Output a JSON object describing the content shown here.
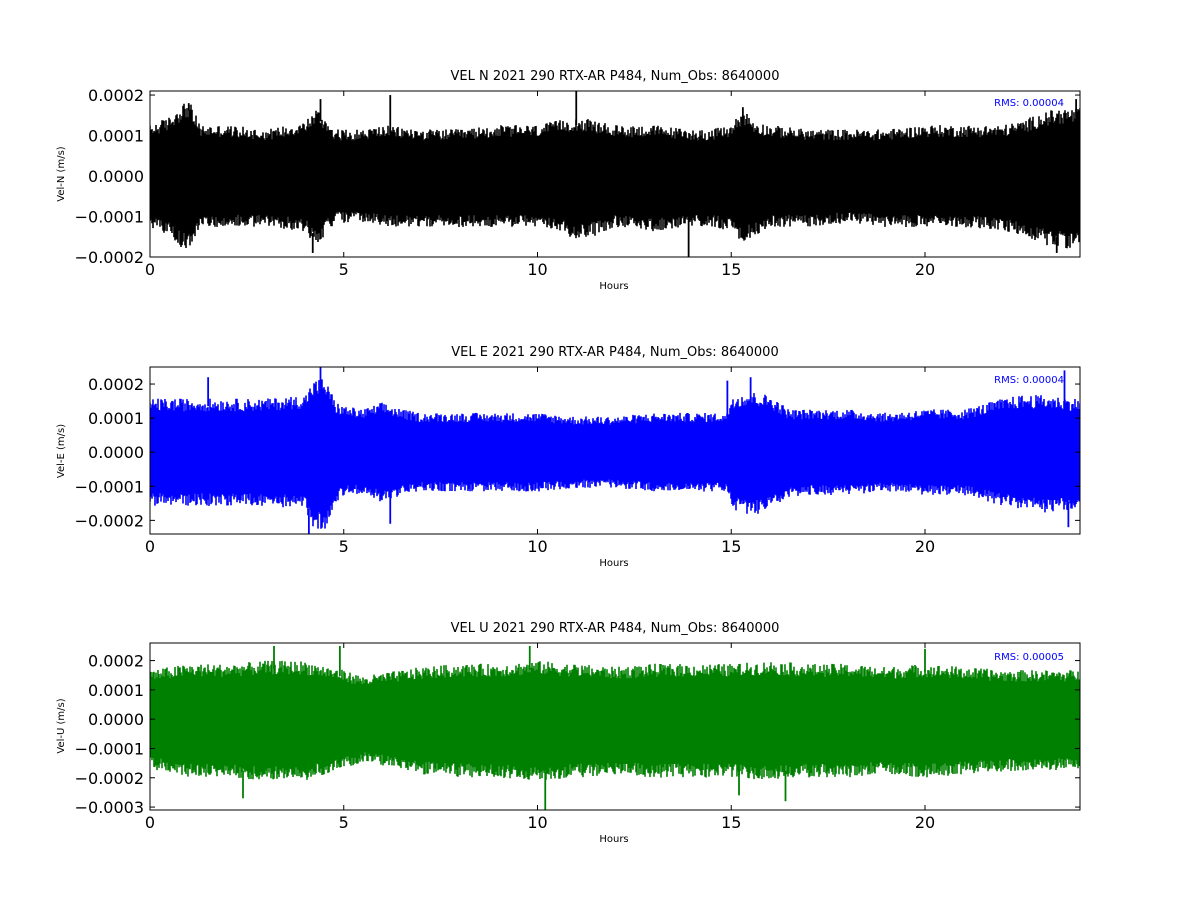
{
  "chart_data": [
    {
      "type": "line",
      "title": "VEL N 2021 290 RTX-AR  P484, Num_Obs: 8640000",
      "xlabel": "Hours",
      "ylabel": "Vel-N (m/s)",
      "xlim": [
        0,
        24
      ],
      "ylim": [
        -0.0002,
        0.00021
      ],
      "xticks": [
        0,
        5,
        10,
        15,
        20
      ],
      "xtick_labels": [
        "0",
        "5",
        "10",
        "15",
        "20"
      ],
      "yticks": [
        -0.0002,
        -0.0001,
        0.0,
        0.0001,
        0.0002
      ],
      "ytick_labels": [
        "−0.0002",
        "−0.0001",
        "0.0000",
        "0.0001",
        "0.0002"
      ],
      "color": "#000000",
      "rms_text": "RMS:  0.00004",
      "rms_color": "#0000ff",
      "grid": false,
      "envelope": {
        "x": [
          0,
          0.5,
          0.8,
          1.0,
          1.3,
          2,
          3,
          4,
          4.3,
          4.5,
          4.8,
          5.5,
          6,
          7,
          8,
          9,
          10,
          10.5,
          11,
          11.5,
          12,
          13,
          14,
          14.5,
          15,
          15.3,
          15.6,
          16,
          17,
          18,
          19,
          20,
          21,
          22,
          22.5,
          23,
          23.5,
          24
        ],
        "upper": [
          0.00012,
          0.00014,
          0.00017,
          0.00018,
          0.00012,
          0.00012,
          0.00011,
          0.00013,
          0.00016,
          0.00014,
          0.00011,
          0.00011,
          0.00012,
          0.00011,
          0.00011,
          0.00012,
          0.00012,
          0.00013,
          0.00014,
          0.00013,
          0.00012,
          0.00012,
          0.00011,
          0.00011,
          0.00012,
          0.00016,
          0.00013,
          0.00012,
          0.00011,
          0.00011,
          0.00011,
          0.00012,
          0.00012,
          0.00012,
          0.00013,
          0.00015,
          0.00016,
          0.00016
        ],
        "lower": [
          -0.00012,
          -0.00014,
          -0.00017,
          -0.00017,
          -0.00012,
          -0.00012,
          -0.00012,
          -0.00013,
          -0.00017,
          -0.00014,
          -0.00011,
          -0.00011,
          -0.00012,
          -0.00012,
          -0.00012,
          -0.00012,
          -0.00012,
          -0.00013,
          -0.00015,
          -0.00014,
          -0.00012,
          -0.00013,
          -0.00012,
          -0.00012,
          -0.00013,
          -0.00016,
          -0.00014,
          -0.00012,
          -0.00012,
          -0.00011,
          -0.00012,
          -0.00012,
          -0.00012,
          -0.00013,
          -0.00014,
          -0.00016,
          -0.00017,
          -0.00017
        ]
      },
      "spikes": [
        {
          "x": 1.0,
          "y": 0.00018
        },
        {
          "x": 4.4,
          "y": 0.00019
        },
        {
          "x": 4.2,
          "y": -0.00019
        },
        {
          "x": 6.2,
          "y": 0.0002
        },
        {
          "x": 11.0,
          "y": 0.00021
        },
        {
          "x": 13.9,
          "y": -0.0002
        },
        {
          "x": 15.3,
          "y": 0.00017
        },
        {
          "x": 23.4,
          "y": -0.00019
        },
        {
          "x": 23.9,
          "y": 0.00019
        }
      ]
    },
    {
      "type": "line",
      "title": "VEL E 2021 290 RTX-AR  P484, Num_Obs: 8640000",
      "xlabel": "Hours",
      "ylabel": "Vel-E (m/s)",
      "xlim": [
        0,
        24
      ],
      "ylim": [
        -0.00024,
        0.00025
      ],
      "xticks": [
        0,
        5,
        10,
        15,
        20
      ],
      "xtick_labels": [
        "0",
        "5",
        "10",
        "15",
        "20"
      ],
      "yticks": [
        -0.0002,
        -0.0001,
        0.0,
        0.0001,
        0.0002
      ],
      "ytick_labels": [
        "−0.0002",
        "−0.0001",
        "0.0000",
        "0.0001",
        "0.0002"
      ],
      "color": "#0000ff",
      "rms_text": "RMS:  0.00004",
      "rms_color": "#0000ff",
      "grid": false,
      "envelope": {
        "x": [
          0,
          1,
          2,
          3,
          4,
          4.2,
          4.5,
          4.8,
          5,
          5.5,
          6,
          6.5,
          7,
          8,
          9,
          10,
          11,
          12,
          13,
          14,
          14.9,
          15.0,
          15.5,
          16,
          16.5,
          17,
          18,
          19,
          20,
          21,
          22,
          22.5,
          23,
          24
        ],
        "upper": [
          0.00015,
          0.00015,
          0.00015,
          0.00015,
          0.00016,
          0.0002,
          0.00021,
          0.00014,
          0.00013,
          0.00012,
          0.00014,
          0.00012,
          0.00011,
          0.00011,
          0.00011,
          0.00011,
          0.0001,
          0.0001,
          0.00011,
          0.00011,
          0.00011,
          0.00016,
          0.00017,
          0.00016,
          0.00012,
          0.00012,
          0.00012,
          0.00011,
          0.00012,
          0.00012,
          0.00015,
          0.00016,
          0.00016,
          0.00015
        ],
        "lower": [
          -0.00015,
          -0.00015,
          -0.00015,
          -0.00015,
          -0.00016,
          -0.00021,
          -0.00022,
          -0.00014,
          -0.00012,
          -0.00012,
          -0.00014,
          -0.00012,
          -0.00011,
          -0.00011,
          -0.00011,
          -0.00011,
          -0.0001,
          -0.0001,
          -0.00011,
          -0.00011,
          -0.00011,
          -0.00016,
          -0.00018,
          -0.00016,
          -0.00013,
          -0.00012,
          -0.00012,
          -0.00011,
          -0.00012,
          -0.00012,
          -0.00015,
          -0.00016,
          -0.00017,
          -0.00016
        ]
      },
      "spikes": [
        {
          "x": 1.5,
          "y": 0.00022
        },
        {
          "x": 4.1,
          "y": -0.00024
        },
        {
          "x": 4.4,
          "y": 0.00025
        },
        {
          "x": 6.2,
          "y": -0.00021
        },
        {
          "x": 14.9,
          "y": 0.00021
        },
        {
          "x": 15.5,
          "y": 0.00022
        },
        {
          "x": 23.6,
          "y": 0.00024
        },
        {
          "x": 23.7,
          "y": -0.00022
        }
      ]
    },
    {
      "type": "line",
      "title": "VEL U 2021 290 RTX-AR  P484, Num_Obs: 8640000",
      "xlabel": "Hours",
      "ylabel": "Vel-U (m/s)",
      "xlim": [
        0,
        24
      ],
      "ylim": [
        -0.00031,
        0.00026
      ],
      "xticks": [
        0,
        5,
        10,
        15,
        20
      ],
      "xtick_labels": [
        "0",
        "5",
        "10",
        "15",
        "20"
      ],
      "yticks": [
        -0.0003,
        -0.0002,
        -0.0001,
        0.0,
        0.0001,
        0.0002
      ],
      "ytick_labels": [
        "−0.0003",
        "−0.0002",
        "−0.0001",
        "0.0000",
        "0.0001",
        "0.0002"
      ],
      "color": "#008000",
      "rms_text": "RMS:  0.00005",
      "rms_color": "#0000ff",
      "grid": false,
      "envelope": {
        "x": [
          0,
          1,
          2,
          3,
          4,
          5,
          5.5,
          6,
          7,
          8,
          9,
          10,
          11,
          12,
          13,
          14,
          15,
          16,
          17,
          18,
          19,
          20,
          21,
          22,
          23,
          24
        ],
        "upper": [
          0.00016,
          0.00018,
          0.00018,
          0.00019,
          0.00019,
          0.00016,
          0.00014,
          0.00015,
          0.00017,
          0.00018,
          0.00018,
          0.00019,
          0.00018,
          0.00017,
          0.00018,
          0.00018,
          0.00018,
          0.00019,
          0.00018,
          0.00018,
          0.00017,
          0.00018,
          0.00017,
          0.00016,
          0.00016,
          0.00016
        ],
        "lower": [
          -0.00016,
          -0.00019,
          -0.00019,
          -0.0002,
          -0.0002,
          -0.00016,
          -0.00014,
          -0.00015,
          -0.00018,
          -0.00019,
          -0.00019,
          -0.0002,
          -0.00019,
          -0.00018,
          -0.00019,
          -0.00019,
          -0.00019,
          -0.0002,
          -0.00019,
          -0.00019,
          -0.00018,
          -0.00019,
          -0.00018,
          -0.00017,
          -0.00017,
          -0.00016
        ]
      },
      "spikes": [
        {
          "x": 3.2,
          "y": 0.00025
        },
        {
          "x": 2.4,
          "y": -0.00027
        },
        {
          "x": 4.9,
          "y": 0.00025
        },
        {
          "x": 9.8,
          "y": 0.00025
        },
        {
          "x": 10.2,
          "y": -0.00031
        },
        {
          "x": 15.2,
          "y": -0.00026
        },
        {
          "x": 16.4,
          "y": -0.00028
        },
        {
          "x": 20.0,
          "y": 0.00024
        }
      ]
    }
  ]
}
